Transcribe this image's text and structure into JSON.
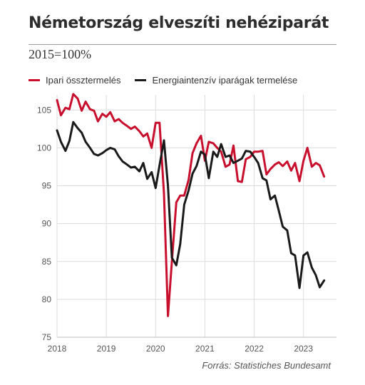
{
  "title": "Németország elveszíti nehéziparát",
  "subtitle": "2015=100%",
  "source": "Forrás: Statistiches Bundesamt",
  "legend": [
    {
      "label": "Ipari össztermelés",
      "color": "#c8102e"
    },
    {
      "label": "Energiaintenzív iparágak termelése",
      "color": "#1a1a1a"
    }
  ],
  "chart_data": {
    "type": "line",
    "xlim": [
      2018.0,
      2023.67
    ],
    "ylim": [
      75,
      107
    ],
    "yticks": [
      75,
      80,
      85,
      90,
      95,
      100,
      105
    ],
    "xticks": [
      2018,
      2019,
      2020,
      2021,
      2022,
      2023
    ],
    "grid": true,
    "legend_position": "top-left",
    "series": [
      {
        "name": "Ipari össztermelés",
        "color": "#c8102e",
        "x": [
          2018.0,
          2018.08,
          2018.17,
          2018.25,
          2018.33,
          2018.42,
          2018.5,
          2018.58,
          2018.67,
          2018.75,
          2018.83,
          2018.92,
          2019.0,
          2019.08,
          2019.17,
          2019.25,
          2019.33,
          2019.42,
          2019.5,
          2019.58,
          2019.67,
          2019.75,
          2019.83,
          2019.92,
          2020.0,
          2020.08,
          2020.17,
          2020.25,
          2020.33,
          2020.42,
          2020.5,
          2020.58,
          2020.67,
          2020.75,
          2020.83,
          2020.92,
          2021.0,
          2021.08,
          2021.17,
          2021.25,
          2021.33,
          2021.42,
          2021.5,
          2021.58,
          2021.67,
          2021.75,
          2021.83,
          2021.92,
          2022.0,
          2022.08,
          2022.17,
          2022.25,
          2022.33,
          2022.42,
          2022.5,
          2022.58,
          2022.67,
          2022.75,
          2022.83,
          2022.92,
          2023.0,
          2023.08,
          2023.17,
          2023.25,
          2023.33,
          2023.42
        ],
        "y": [
          106.3,
          104.3,
          105.3,
          105.1,
          107.1,
          106.5,
          104.9,
          106.1,
          105.1,
          104.9,
          103.5,
          104.5,
          104.1,
          104.7,
          103.5,
          103.8,
          103.3,
          102.9,
          102.5,
          102.8,
          102.2,
          101.5,
          101.9,
          100.0,
          103.3,
          103.3,
          94.0,
          77.8,
          85.0,
          92.8,
          93.7,
          93.7,
          95.8,
          99.3,
          100.6,
          101.6,
          98.3,
          100.8,
          100.6,
          100.0,
          99.5,
          97.5,
          97.8,
          100.3,
          95.6,
          95.5,
          98.5,
          98.8,
          99.5,
          99.5,
          99.6,
          96.5,
          97.2,
          97.8,
          98.1,
          97.6,
          98.2,
          97.0,
          98.0,
          95.6,
          98.3,
          100.0,
          97.5,
          98.0,
          97.7,
          96.2
        ]
      },
      {
        "name": "Energiaintenzív iparágak termelése",
        "color": "#1a1a1a",
        "x": [
          2018.0,
          2018.08,
          2018.17,
          2018.25,
          2018.33,
          2018.42,
          2018.5,
          2018.58,
          2018.67,
          2018.75,
          2018.83,
          2018.92,
          2019.0,
          2019.08,
          2019.17,
          2019.25,
          2019.33,
          2019.42,
          2019.5,
          2019.58,
          2019.67,
          2019.75,
          2019.83,
          2019.92,
          2020.0,
          2020.08,
          2020.17,
          2020.25,
          2020.33,
          2020.42,
          2020.5,
          2020.58,
          2020.67,
          2020.75,
          2020.83,
          2020.92,
          2021.0,
          2021.08,
          2021.17,
          2021.25,
          2021.33,
          2021.42,
          2021.5,
          2021.58,
          2021.67,
          2021.75,
          2021.83,
          2021.92,
          2022.0,
          2022.08,
          2022.17,
          2022.25,
          2022.33,
          2022.42,
          2022.5,
          2022.58,
          2022.67,
          2022.75,
          2022.83,
          2022.92,
          2023.0,
          2023.08,
          2023.17,
          2023.25,
          2023.33,
          2023.42
        ],
        "y": [
          102.3,
          100.8,
          99.6,
          100.9,
          103.4,
          102.6,
          102.0,
          100.8,
          100.0,
          99.2,
          99.0,
          99.3,
          99.7,
          100.0,
          99.8,
          98.9,
          98.2,
          97.8,
          97.4,
          97.5,
          96.9,
          98.0,
          95.9,
          96.8,
          94.7,
          97.7,
          101.0,
          95.0,
          85.5,
          84.5,
          87.3,
          92.5,
          94.4,
          96.6,
          97.6,
          99.5,
          99.1,
          96.0,
          99.5,
          98.8,
          100.5,
          98.8,
          99.0,
          98.0,
          98.3,
          98.6,
          99.6,
          99.5,
          98.8,
          98.0,
          96.0,
          95.7,
          93.2,
          93.7,
          91.7,
          89.6,
          89.1,
          86.1,
          85.8,
          81.5,
          85.8,
          86.2,
          84.2,
          83.2,
          81.6,
          82.5
        ]
      }
    ]
  }
}
